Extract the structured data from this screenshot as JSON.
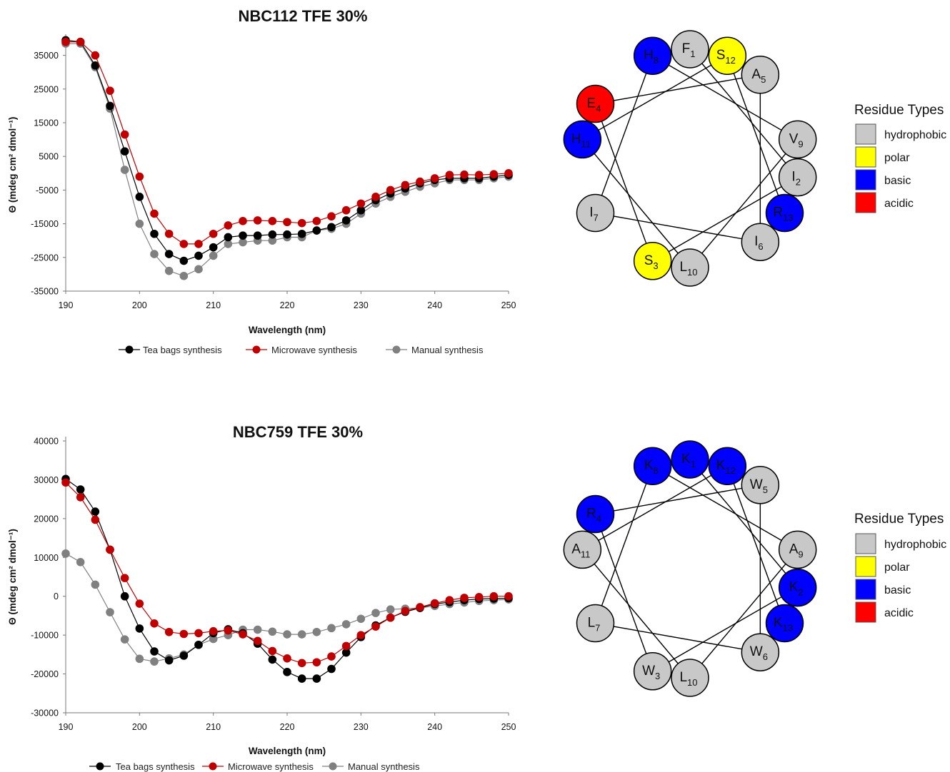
{
  "chart_data": [
    {
      "type": "line",
      "title": "NBC112 TFE 30%",
      "xlabel": "Wavelength (nm)",
      "ylabel": "Θ (mdeg cm² dmol⁻¹)",
      "xlim": [
        190,
        250
      ],
      "ylim": [
        -35000,
        40000
      ],
      "xticks": [
        "190",
        "200",
        "210",
        "220",
        "230",
        "240",
        "250"
      ],
      "yticks": [
        "35000",
        "25000",
        "15000",
        "5000",
        "-5000",
        "-15000",
        "-25000",
        "-35000"
      ],
      "legend_position": "bottom",
      "x": [
        190,
        192,
        194,
        196,
        198,
        200,
        202,
        204,
        206,
        208,
        210,
        212,
        214,
        216,
        218,
        220,
        222,
        224,
        226,
        228,
        230,
        232,
        234,
        236,
        238,
        240,
        242,
        244,
        246,
        248,
        250
      ],
      "series": [
        {
          "name": "Tea bags synthesis",
          "color": "#000000",
          "values": [
            39500,
            39000,
            32000,
            20000,
            6500,
            -7000,
            -18000,
            -24000,
            -26000,
            -24500,
            -22000,
            -19000,
            -18500,
            -18500,
            -18200,
            -18200,
            -18000,
            -17000,
            -16000,
            -14000,
            -11000,
            -8000,
            -6000,
            -4500,
            -3000,
            -2000,
            -1500,
            -1500,
            -1500,
            -1000,
            -500
          ]
        },
        {
          "name": "Microwave synthesis",
          "color": "#c00000",
          "values": [
            39000,
            39000,
            35000,
            24500,
            11500,
            -1000,
            -12000,
            -18000,
            -21000,
            -21000,
            -18000,
            -15500,
            -14200,
            -14000,
            -14200,
            -14500,
            -14800,
            -14200,
            -12800,
            -11000,
            -9000,
            -7000,
            -5000,
            -3500,
            -2500,
            -1500,
            -500,
            -400,
            -500,
            -300,
            0
          ]
        },
        {
          "name": "Manual synthesis",
          "color": "#808080",
          "values": [
            38500,
            38500,
            31500,
            19200,
            1000,
            -15000,
            -24000,
            -29000,
            -30500,
            -28500,
            -24500,
            -21000,
            -20500,
            -20000,
            -20000,
            -19000,
            -19000,
            -17000,
            -16500,
            -15000,
            -12000,
            -9000,
            -7000,
            -5500,
            -4000,
            -3000,
            -2000,
            -2000,
            -2000,
            -1500,
            -1000
          ]
        }
      ]
    },
    {
      "type": "line",
      "title": "NBC759 TFE 30%",
      "xlabel": "Wavelength (nm)",
      "ylabel": "Θ (mdeg cm² dmol⁻¹)",
      "xlim": [
        190,
        250
      ],
      "ylim": [
        -30000,
        40000
      ],
      "xticks": [
        "190",
        "200",
        "210",
        "220",
        "230",
        "240",
        "250"
      ],
      "yticks": [
        "40000",
        "30000",
        "20000",
        "10000",
        "0",
        "-10000",
        "-20000",
        "-30000"
      ],
      "legend_position": "bottom",
      "x": [
        190,
        192,
        194,
        196,
        198,
        200,
        202,
        204,
        206,
        208,
        210,
        212,
        214,
        216,
        218,
        220,
        222,
        224,
        226,
        228,
        230,
        232,
        234,
        236,
        238,
        240,
        242,
        244,
        246,
        248,
        250
      ],
      "series": [
        {
          "name": "Tea bags synthesis",
          "color": "#000000",
          "values": [
            30200,
            27500,
            21800,
            12000,
            0,
            -8300,
            -14200,
            -16500,
            -15300,
            -12500,
            -9500,
            -8500,
            -9500,
            -12200,
            -16300,
            -19500,
            -21200,
            -21200,
            -18700,
            -14500,
            -10500,
            -7500,
            -5500,
            -4000,
            -3000,
            -2000,
            -1500,
            -1000,
            -700,
            -600,
            -500
          ]
        },
        {
          "name": "Microwave synthesis",
          "color": "#c00000",
          "values": [
            29300,
            25500,
            19700,
            12000,
            4700,
            -1900,
            -7000,
            -9200,
            -9700,
            -9500,
            -9000,
            -8800,
            -9800,
            -11500,
            -14100,
            -16000,
            -17200,
            -17000,
            -15500,
            -12800,
            -10000,
            -7800,
            -5500,
            -3800,
            -2800,
            -1800,
            -1000,
            -400,
            -200,
            0,
            0
          ]
        },
        {
          "name": "Manual synthesis",
          "color": "#808080",
          "values": [
            11000,
            8800,
            3000,
            -4100,
            -11100,
            -16100,
            -16800,
            -16000,
            -15000,
            -12500,
            -11000,
            -10000,
            -8600,
            -8600,
            -9100,
            -9800,
            -9800,
            -9200,
            -8200,
            -7200,
            -5800,
            -4300,
            -3400,
            -3200,
            -3000,
            -2500,
            -2000,
            -1600,
            -1200,
            -1000,
            -800
          ]
        }
      ]
    }
  ],
  "helical_wheels": [
    {
      "residues": [
        {
          "letter": "F",
          "sub": "1",
          "type": "hydrophobic"
        },
        {
          "letter": "I",
          "sub": "2",
          "type": "hydrophobic"
        },
        {
          "letter": "S",
          "sub": "3",
          "type": "polar"
        },
        {
          "letter": "E",
          "sub": "4",
          "type": "acidic"
        },
        {
          "letter": "A",
          "sub": "5",
          "type": "hydrophobic"
        },
        {
          "letter": "I",
          "sub": "6",
          "type": "hydrophobic"
        },
        {
          "letter": "I",
          "sub": "7",
          "type": "hydrophobic"
        },
        {
          "letter": "H",
          "sub": "8",
          "type": "basic"
        },
        {
          "letter": "V",
          "sub": "9",
          "type": "hydrophobic"
        },
        {
          "letter": "L",
          "sub": "10",
          "type": "hydrophobic"
        },
        {
          "letter": "H",
          "sub": "11",
          "type": "basic"
        },
        {
          "letter": "S",
          "sub": "12",
          "type": "polar"
        },
        {
          "letter": "R",
          "sub": "13",
          "type": "basic"
        }
      ]
    },
    {
      "residues": [
        {
          "letter": "K",
          "sub": "1",
          "type": "basic"
        },
        {
          "letter": "K",
          "sub": "2",
          "type": "basic"
        },
        {
          "letter": "W",
          "sub": "3",
          "type": "hydrophobic"
        },
        {
          "letter": "R",
          "sub": "4",
          "type": "basic"
        },
        {
          "letter": "W",
          "sub": "5",
          "type": "hydrophobic"
        },
        {
          "letter": "W",
          "sub": "6",
          "type": "hydrophobic"
        },
        {
          "letter": "L",
          "sub": "7",
          "type": "hydrophobic"
        },
        {
          "letter": "K",
          "sub": "8",
          "type": "basic"
        },
        {
          "letter": "A",
          "sub": "9",
          "type": "hydrophobic"
        },
        {
          "letter": "L",
          "sub": "10",
          "type": "hydrophobic"
        },
        {
          "letter": "A",
          "sub": "11",
          "type": "hydrophobic"
        },
        {
          "letter": "K",
          "sub": "12",
          "type": "basic"
        },
        {
          "letter": "K",
          "sub": "13",
          "type": "basic"
        }
      ]
    }
  ],
  "residue_legend": {
    "title": "Residue Types",
    "items": [
      {
        "key": "hydrophobic",
        "label": "hydrophobic",
        "color": "#c8c8c8"
      },
      {
        "key": "polar",
        "label": "polar",
        "color": "#ffff00"
      },
      {
        "key": "basic",
        "label": "basic",
        "color": "#0000ff"
      },
      {
        "key": "acidic",
        "label": "acidic",
        "color": "#ff0000"
      }
    ]
  }
}
